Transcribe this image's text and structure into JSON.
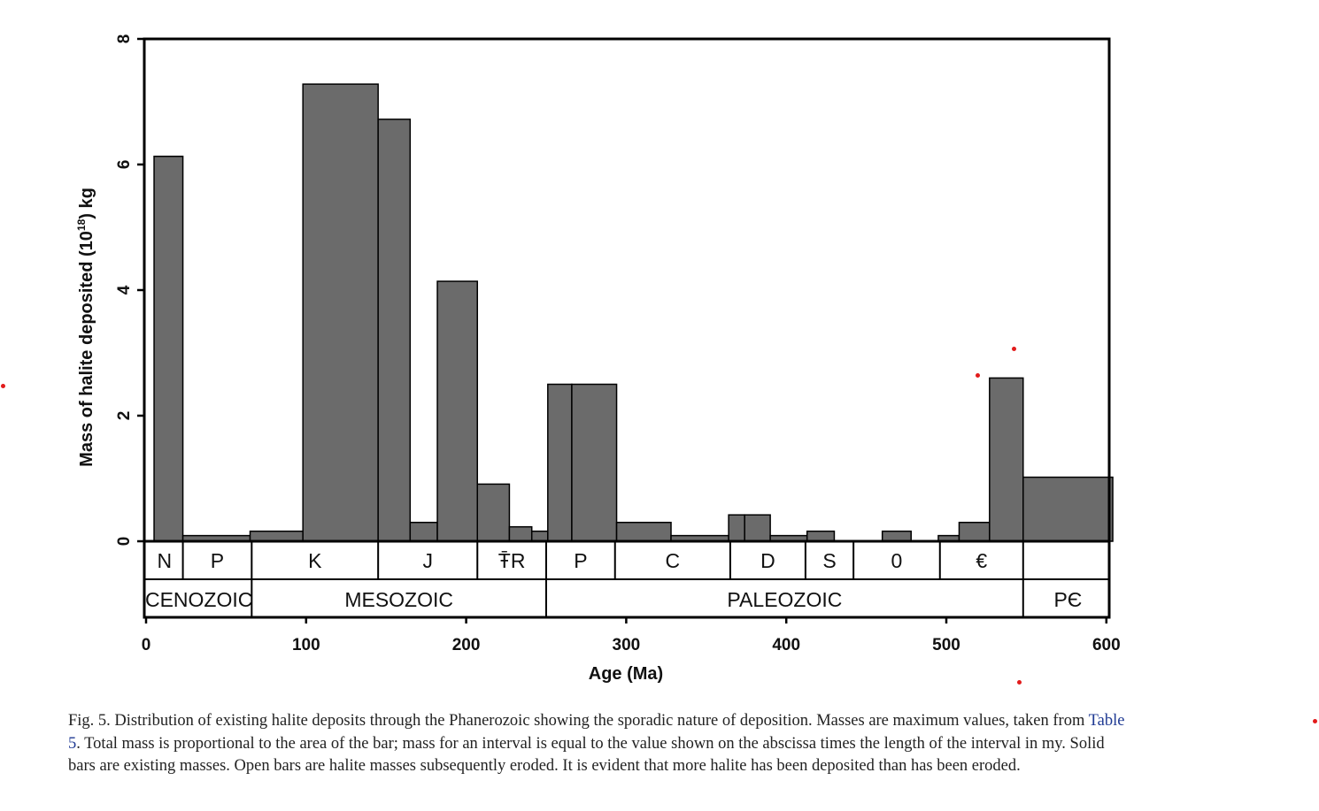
{
  "chart_data": {
    "type": "bar",
    "xlabel": "Age (Ma)",
    "ylabel": "Mass of halite deposited (10",
    "ylabel_sup": "18",
    "ylabel_end": ") kg",
    "xlim": [
      0,
      600
    ],
    "ylim": [
      0,
      8
    ],
    "x_ticks": [
      "0",
      "100",
      "200",
      "300",
      "400",
      "500",
      "600"
    ],
    "y_ticks": [
      "0",
      "2",
      "4",
      "6",
      "8"
    ],
    "bar_color": "#6b6b6b",
    "bars": [
      {
        "x0": 5,
        "x1": 23,
        "value": 6.13
      },
      {
        "x0": 23,
        "x1": 65,
        "value": 0.09
      },
      {
        "x0": 65,
        "x1": 98,
        "value": 0.16
      },
      {
        "x0": 98,
        "x1": 145,
        "value": 7.28
      },
      {
        "x0": 145,
        "x1": 165,
        "value": 6.72
      },
      {
        "x0": 165,
        "x1": 182,
        "value": 0.3
      },
      {
        "x0": 182,
        "x1": 207,
        "value": 4.14
      },
      {
        "x0": 207,
        "x1": 227,
        "value": 0.91
      },
      {
        "x0": 227,
        "x1": 241,
        "value": 0.23
      },
      {
        "x0": 241,
        "x1": 251,
        "value": 0.16
      },
      {
        "x0": 251,
        "x1": 266,
        "value": 2.5
      },
      {
        "x0": 266,
        "x1": 294,
        "value": 2.5
      },
      {
        "x0": 294,
        "x1": 328,
        "value": 0.3
      },
      {
        "x0": 328,
        "x1": 364,
        "value": 0.09
      },
      {
        "x0": 364,
        "x1": 374,
        "value": 0.42
      },
      {
        "x0": 374,
        "x1": 390,
        "value": 0.42
      },
      {
        "x0": 390,
        "x1": 413,
        "value": 0.09
      },
      {
        "x0": 413,
        "x1": 430,
        "value": 0.16
      },
      {
        "x0": 460,
        "x1": 478,
        "value": 0.16
      },
      {
        "x0": 495,
        "x1": 508,
        "value": 0.09
      },
      {
        "x0": 508,
        "x1": 527,
        "value": 0.3
      },
      {
        "x0": 527,
        "x1": 548,
        "value": 2.6
      },
      {
        "x0": 548,
        "x1": 604,
        "value": 1.02
      }
    ],
    "periods": [
      {
        "label": "N",
        "x0": 0,
        "x1": 23
      },
      {
        "label": "P",
        "x0": 23,
        "x1": 66
      },
      {
        "label": "K",
        "x0": 66,
        "x1": 145
      },
      {
        "label": "J",
        "x0": 145,
        "x1": 207
      },
      {
        "label": "Ŧ̄R",
        "x0": 207,
        "x1": 250
      },
      {
        "label": "P",
        "x0": 250,
        "x1": 293
      },
      {
        "label": "C",
        "x0": 293,
        "x1": 365
      },
      {
        "label": "D",
        "x0": 365,
        "x1": 412
      },
      {
        "label": "S",
        "x0": 412,
        "x1": 442
      },
      {
        "label": "0",
        "x0": 442,
        "x1": 496
      },
      {
        "label": "€",
        "x0": 496,
        "x1": 548
      },
      {
        "label": "",
        "x0": 548,
        "x1": 604
      }
    ],
    "eras": [
      {
        "label": "CENOZOIC",
        "x0": 0,
        "x1": 66
      },
      {
        "label": "MESOZOIC",
        "x0": 66,
        "x1": 250
      },
      {
        "label": "PALEOZOIC",
        "x0": 250,
        "x1": 548
      },
      {
        "label": "PЄ",
        "x0": 548,
        "x1": 604
      }
    ]
  },
  "caption": {
    "part1": "Fig. 5. Distribution of existing halite deposits through the Phanerozoic showing the sporadic nature of deposition. Masses are maximum values, taken from ",
    "link": "Table 5",
    "part2": ". Total mass is proportional to the area of the bar; mass for an interval is equal to the value shown on the abscissa times the length of the interval in my. Solid bars are existing masses. Open bars are halite masses subsequently eroded. It is evident that more halite has been deposited than has been eroded."
  },
  "marker_color": "#e21b1b"
}
